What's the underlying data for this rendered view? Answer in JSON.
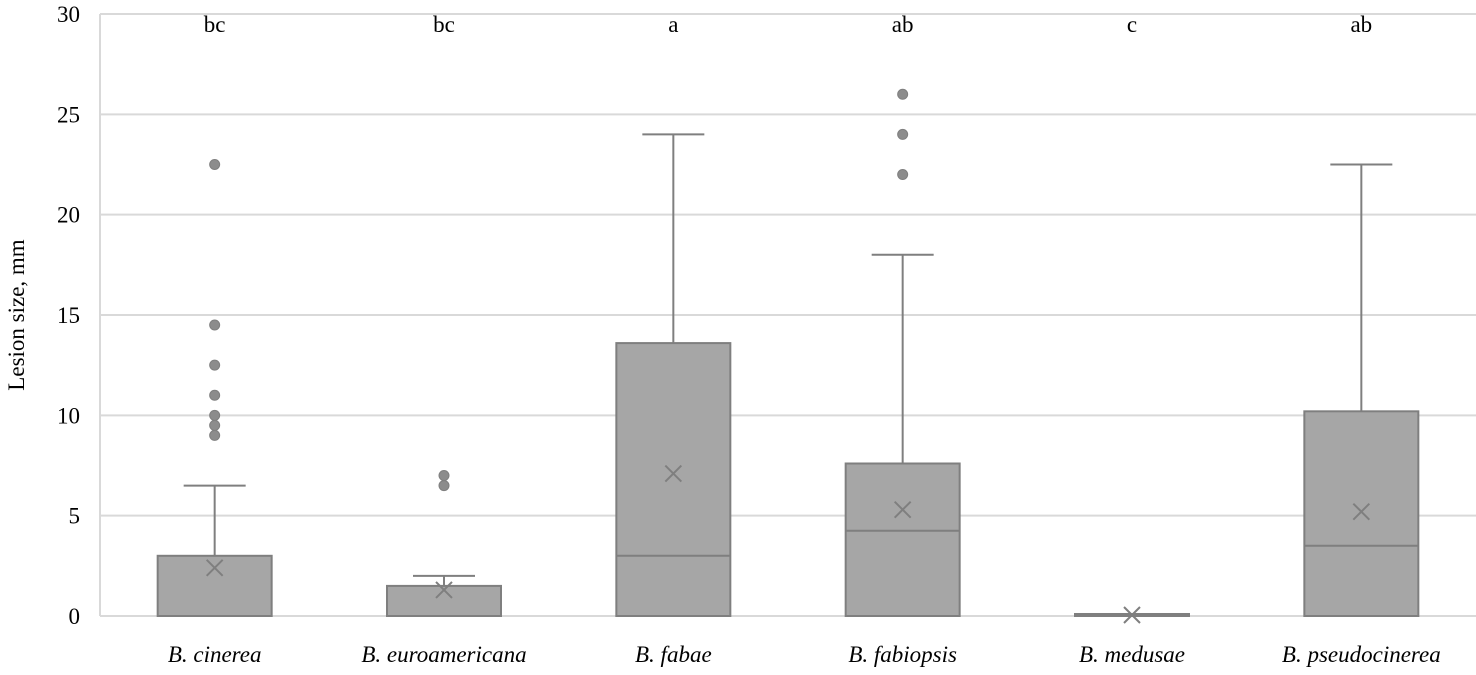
{
  "chart_data": {
    "type": "boxplot",
    "title": "",
    "xlabel": "",
    "ylabel": "Lesion size, mm",
    "ylim": [
      0,
      30
    ],
    "yticks": [
      0,
      5,
      10,
      15,
      20,
      25,
      30
    ],
    "ytick_labels": [
      "0",
      "5",
      "10",
      "15",
      "20",
      "25",
      "30"
    ],
    "grid": true,
    "categories": [
      "B. cinerea",
      "B. euroamericana",
      "B. fabae",
      "B. fabiopsis",
      "B. medusae",
      "B. pseudocinerea"
    ],
    "letters": [
      "bc",
      "bc",
      "a",
      "ab",
      "c",
      "ab"
    ],
    "boxes": [
      {
        "min": 0,
        "q1": 0,
        "median": 0,
        "q3": 3.0,
        "max": 6.5,
        "mean": 2.4,
        "outliers": [
          9,
          9.5,
          10,
          11,
          12.5,
          14.5,
          22.5
        ]
      },
      {
        "min": 0,
        "q1": 0,
        "median": 0,
        "q3": 1.5,
        "max": 2.0,
        "mean": 1.3,
        "outliers": [
          6.5,
          7
        ]
      },
      {
        "min": 0,
        "q1": 0,
        "median": 3.0,
        "q3": 13.6,
        "max": 24,
        "mean": 7.1,
        "outliers": []
      },
      {
        "min": 0,
        "q1": 0,
        "median": 4.25,
        "q3": 7.6,
        "max": 18,
        "mean": 5.3,
        "outliers": [
          22,
          24,
          26
        ]
      },
      {
        "min": 0,
        "q1": 0,
        "median": 0,
        "q3": 0.1,
        "max": 0.1,
        "mean": 0.05,
        "outliers": []
      },
      {
        "min": 0,
        "q1": 0,
        "median": 3.5,
        "q3": 10.2,
        "max": 22.5,
        "mean": 5.2,
        "outliers": []
      }
    ]
  },
  "colors": {
    "box_fill": "#a6a6a6",
    "box_stroke": "#7f7f7f",
    "grid": "#d9d9d9",
    "outlier": "#8c8c8c"
  }
}
